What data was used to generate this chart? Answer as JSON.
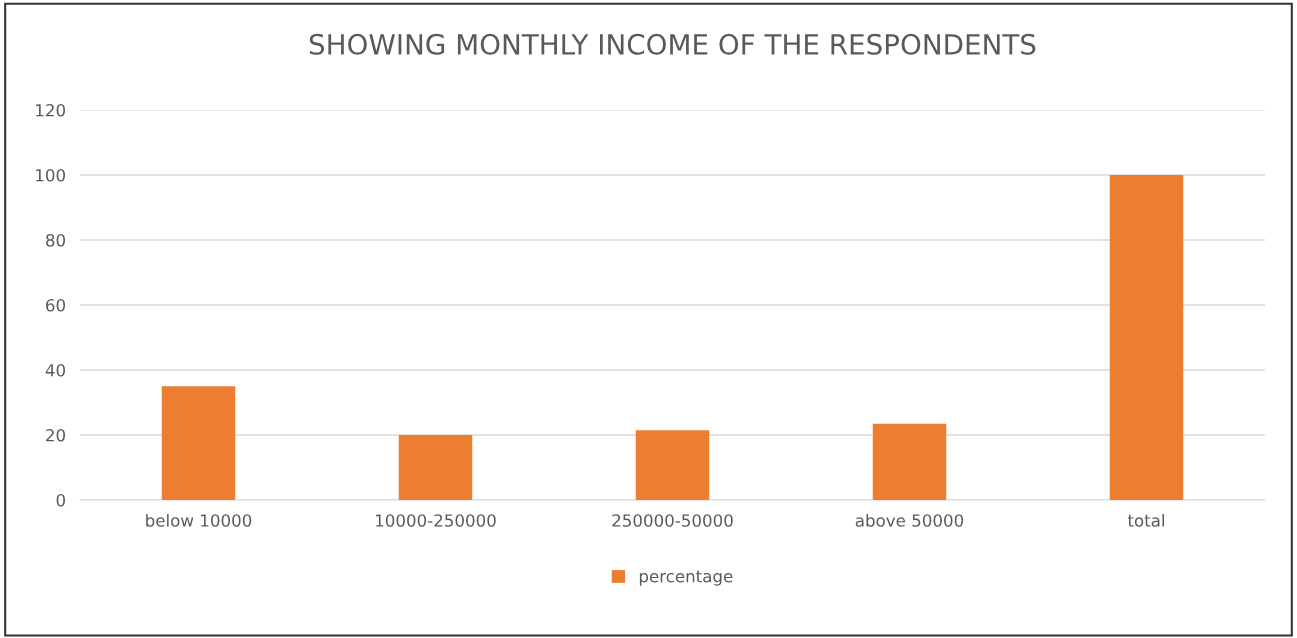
{
  "chart_data": {
    "type": "bar",
    "title": "SHOWING MONTHLY INCOME OF THE RESPONDENTS",
    "categories": [
      "below 10000",
      "10000-250000",
      "250000-50000",
      "above 50000",
      "total"
    ],
    "series": [
      {
        "name": "percentage",
        "color": "#ed7d31",
        "values": [
          35,
          20,
          21.5,
          23.5,
          100
        ]
      }
    ],
    "ylim": [
      0,
      120
    ],
    "yticks": [
      0,
      20,
      40,
      60,
      80,
      100,
      120
    ],
    "grid": "y",
    "legend": "bottom"
  }
}
